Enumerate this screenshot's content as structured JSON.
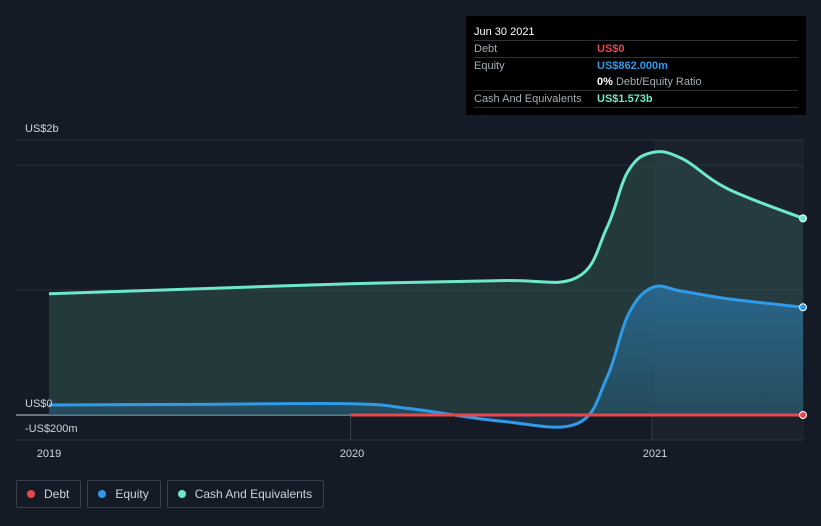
{
  "tooltip": {
    "date": "Jun 30 2021",
    "debt_label": "Debt",
    "debt_value": "US$0",
    "equity_label": "Equity",
    "equity_value": "US$862.000m",
    "ratio_value": "0%",
    "ratio_label": "Debt/Equity Ratio",
    "cash_label": "Cash And Equivalents",
    "cash_value": "US$1.573b"
  },
  "legend": {
    "items": [
      {
        "label": "Debt",
        "color": "#e5484d"
      },
      {
        "label": "Equity",
        "color": "#2f9be9"
      },
      {
        "label": "Cash And Equivalents",
        "color": "#6ee8cc"
      }
    ]
  },
  "colors": {
    "background": "#151b26",
    "debt": "#e5484d",
    "equity": "#2f9be9",
    "cash": "#6ee8cc"
  },
  "chart_data": {
    "type": "area",
    "title": "",
    "xlabel": "",
    "ylabel": "",
    "y_tick_labels": [
      "US$2b",
      "US$0",
      "-US$200m"
    ],
    "x_tick_labels": [
      "2019",
      "2020",
      "2021"
    ],
    "ylim": [
      -200,
      2200
    ],
    "xlim": [
      2019.0,
      2021.5
    ],
    "grid": true,
    "legend_position": "bottom-left",
    "series": [
      {
        "name": "Cash And Equivalents",
        "color": "#6ee8cc",
        "x": [
          2019.0,
          2019.5,
          2020.0,
          2020.5,
          2020.75,
          2020.85,
          2020.92,
          2021.0,
          2021.1,
          2021.25,
          2021.5
        ],
        "values": [
          970,
          1010,
          1050,
          1075,
          1100,
          1500,
          1950,
          2100,
          2050,
          1810,
          1573
        ]
      },
      {
        "name": "Equity",
        "color": "#2f9be9",
        "x": [
          2019.0,
          2019.5,
          2020.0,
          2020.2,
          2020.5,
          2020.75,
          2020.85,
          2020.92,
          2021.0,
          2021.1,
          2021.25,
          2021.5
        ],
        "values": [
          80,
          85,
          90,
          50,
          -50,
          -70,
          300,
          800,
          1020,
          990,
          930,
          862
        ]
      },
      {
        "name": "Debt",
        "color": "#e5484d",
        "x": [
          2020.0,
          2020.5,
          2021.0,
          2021.5
        ],
        "values": [
          0,
          0,
          0,
          0
        ]
      }
    ]
  }
}
